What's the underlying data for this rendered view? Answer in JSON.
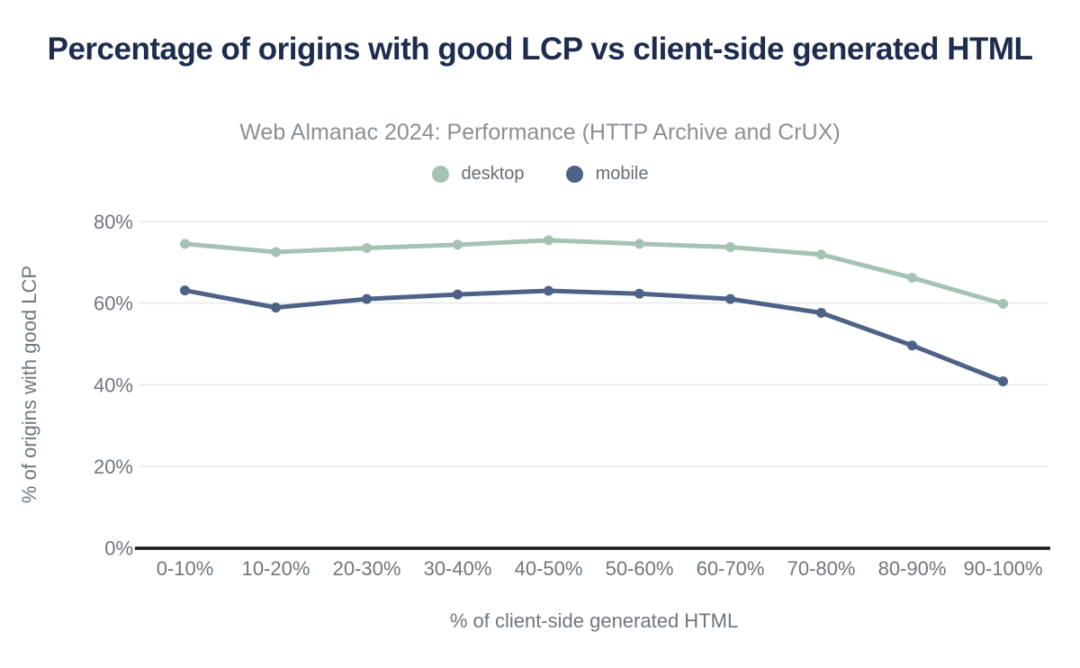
{
  "title": "Percentage of origins with good LCP vs client-side generated HTML",
  "subtitle": "Web Almanac 2024: Performance (HTTP Archive and CrUX)",
  "colors": {
    "title": "#1e2c4e",
    "subtitle": "#8a9096",
    "legend_text": "#686e75",
    "axis_text": "#6f767e",
    "grid": "#ededed",
    "axis_line": "#14181c",
    "desktop": "#a5c3b4",
    "mobile": "#4e6287"
  },
  "chart_data": {
    "type": "line",
    "title": "Percentage of origins with good LCP vs client-side generated HTML",
    "subtitle": "Web Almanac 2024: Performance (HTTP Archive and CrUX)",
    "categories": [
      "0-10%",
      "10-20%",
      "20-30%",
      "30-40%",
      "40-50%",
      "50-60%",
      "60-70%",
      "70-80%",
      "80-90%",
      "90-100%"
    ],
    "series": [
      {
        "name": "desktop",
        "color": "#a5c3b4",
        "values": [
          74.5,
          72.5,
          73.5,
          74.3,
          75.4,
          74.5,
          73.7,
          71.9,
          66.2,
          59.8
        ]
      },
      {
        "name": "mobile",
        "color": "#4e6287",
        "values": [
          63.1,
          58.9,
          61.0,
          62.1,
          63.0,
          62.3,
          61.0,
          57.6,
          49.6,
          40.8
        ]
      }
    ],
    "xlabel": "% of client-side generated HTML",
    "ylabel": "% of origins with good LCP",
    "ylim": [
      0,
      80
    ],
    "yticks": [
      {
        "value": 0,
        "label": "0%"
      },
      {
        "value": 20,
        "label": "20%"
      },
      {
        "value": 40,
        "label": "40%"
      },
      {
        "value": 60,
        "label": "60%"
      },
      {
        "value": 80,
        "label": "80%"
      }
    ],
    "grid": "horizontal",
    "legend_position": "top",
    "marker": "circle"
  }
}
